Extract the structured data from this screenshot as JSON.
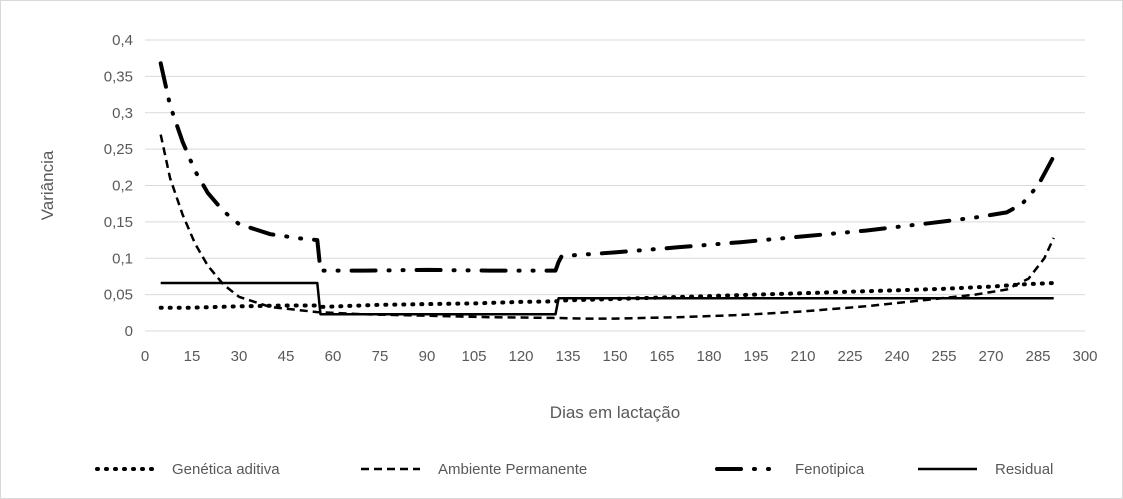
{
  "chart_data": {
    "type": "line",
    "title": "",
    "xlabel": "Dias em lactação",
    "ylabel": "Variância",
    "xlim": [
      0,
      300
    ],
    "ylim": [
      0,
      0.4
    ],
    "x_ticks": [
      "0",
      "15",
      "30",
      "45",
      "60",
      "75",
      "90",
      "105",
      "120",
      "135",
      "150",
      "165",
      "180",
      "195",
      "210",
      "225",
      "240",
      "255",
      "270",
      "285",
      "300"
    ],
    "y_ticks": [
      "0",
      "0,05",
      "0,1",
      "0,15",
      "0,2",
      "0,25",
      "0,3",
      "0,35",
      "0,4"
    ],
    "grid": "horizontal",
    "legend_position": "bottom",
    "series": [
      {
        "name": "Genética aditiva",
        "style": "dotted",
        "color": "#000000",
        "x": [
          5,
          15,
          30,
          45,
          55,
          56,
          75,
          90,
          105,
          120,
          133,
          134,
          150,
          165,
          180,
          195,
          210,
          225,
          240,
          255,
          270,
          280,
          290
        ],
        "y": [
          0.032,
          0.032,
          0.034,
          0.035,
          0.035,
          0.033,
          0.036,
          0.037,
          0.038,
          0.04,
          0.041,
          0.042,
          0.044,
          0.046,
          0.048,
          0.05,
          0.052,
          0.054,
          0.056,
          0.058,
          0.061,
          0.064,
          0.066
        ]
      },
      {
        "name": "Ambiente Permanente",
        "style": "dashed",
        "color": "#000000",
        "x": [
          5,
          8,
          12,
          16,
          20,
          25,
          30,
          40,
          55,
          70,
          90,
          110,
          130,
          140,
          150,
          170,
          190,
          210,
          230,
          250,
          265,
          275,
          282,
          287,
          290
        ],
        "y": [
          0.27,
          0.21,
          0.16,
          0.12,
          0.09,
          0.064,
          0.047,
          0.033,
          0.026,
          0.023,
          0.021,
          0.019,
          0.018,
          0.017,
          0.017,
          0.019,
          0.022,
          0.027,
          0.034,
          0.043,
          0.05,
          0.057,
          0.072,
          0.1,
          0.128
        ]
      },
      {
        "name": "Fenotipica",
        "style": "dashdot",
        "color": "#000000",
        "x": [
          5,
          8,
          12,
          16,
          20,
          25,
          30,
          40,
          50,
          55,
          56,
          70,
          90,
          110,
          131,
          132,
          133,
          150,
          170,
          190,
          210,
          230,
          250,
          265,
          275,
          280,
          285,
          290
        ],
        "y": [
          0.368,
          0.31,
          0.26,
          0.22,
          0.19,
          0.165,
          0.147,
          0.133,
          0.127,
          0.125,
          0.083,
          0.083,
          0.084,
          0.083,
          0.083,
          0.095,
          0.103,
          0.108,
          0.115,
          0.122,
          0.13,
          0.138,
          0.148,
          0.156,
          0.163,
          0.175,
          0.2,
          0.24
        ]
      },
      {
        "name": "Residual",
        "style": "solid",
        "color": "#000000",
        "x": [
          5,
          55,
          56,
          131,
          132,
          290
        ],
        "y": [
          0.066,
          0.066,
          0.023,
          0.023,
          0.045,
          0.045
        ]
      }
    ]
  }
}
